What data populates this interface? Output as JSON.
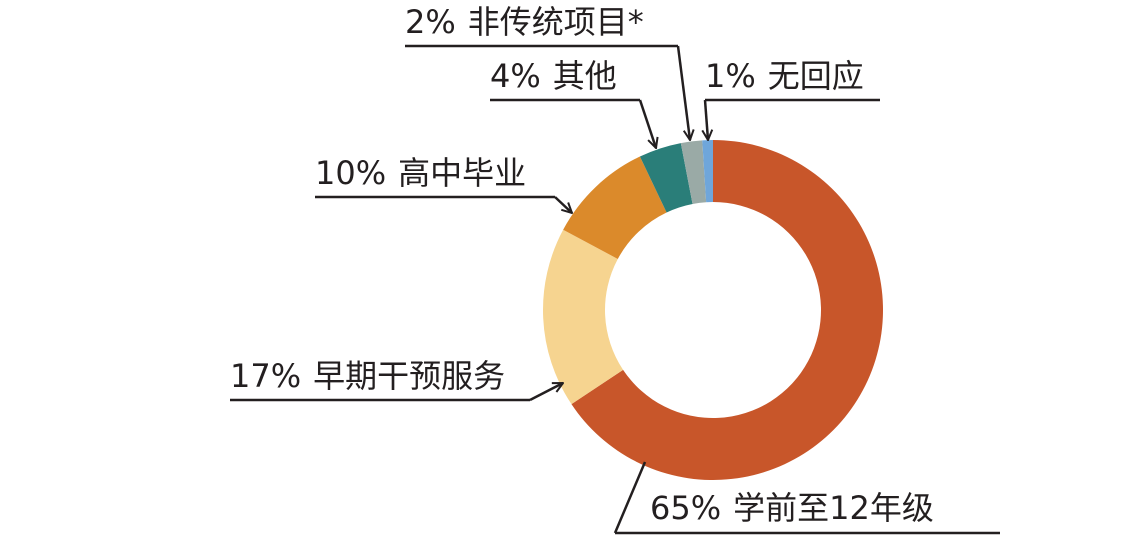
{
  "chart_data": {
    "type": "donut",
    "categories": [
      "学前至12年级",
      "早期干预服务",
      "高中毕业",
      "其他",
      "非传统项目*",
      "无回应"
    ],
    "values": [
      65,
      17,
      10,
      4,
      2,
      1
    ],
    "value_labels": [
      "65%",
      "17%",
      "10%",
      "4%",
      "2%",
      "1%"
    ],
    "colors": [
      "#c8562a",
      "#f6d490",
      "#db8a2b",
      "#2a7e79",
      "#9aaaa6",
      "#6fa6da"
    ]
  }
}
